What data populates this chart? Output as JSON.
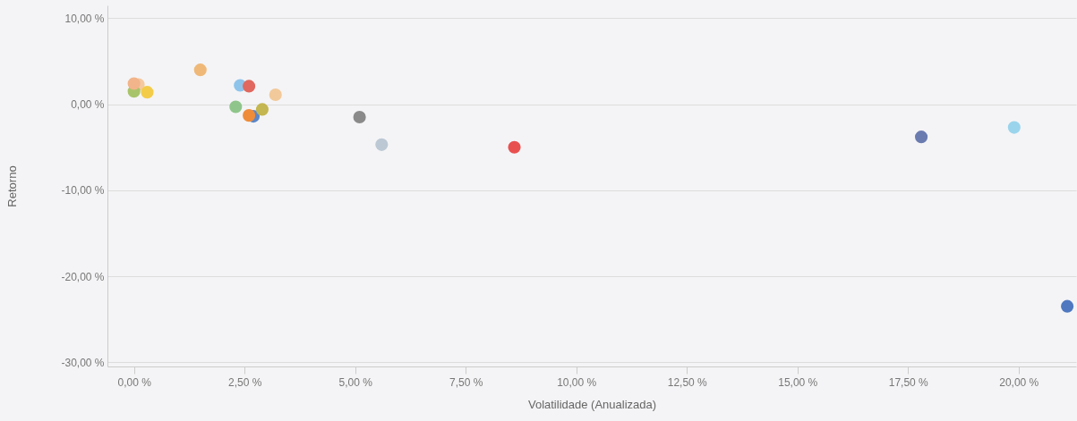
{
  "chart_data": {
    "type": "scatter",
    "xlabel": "Volatilidade (Anualizada)",
    "ylabel": "Retorno",
    "x": [
      0.1,
      0.0,
      0.3,
      0.0,
      1.5,
      2.4,
      2.6,
      3.2,
      2.3,
      2.7,
      2.6,
      2.9,
      5.1,
      5.6,
      8.6,
      17.8,
      19.9,
      21.1
    ],
    "values": [
      2.3,
      1.5,
      1.4,
      2.4,
      4.0,
      2.2,
      2.1,
      1.1,
      -0.3,
      -1.4,
      -1.3,
      -0.6,
      -1.5,
      -4.7,
      -5.0,
      -3.8,
      -2.7,
      -23.5
    ],
    "colors": [
      "#f5c9a0",
      "#a8c46a",
      "#f3cc4a",
      "#f2b48a",
      "#efb878",
      "#8ec4ea",
      "#e0685e",
      "#f2c99a",
      "#8fc58a",
      "#5b86c8",
      "#ef8c3a",
      "#c4b650",
      "#8a8a8a",
      "#bcc8d4",
      "#e85050",
      "#6a7bb0",
      "#9ad4ec",
      "#4f78c0"
    ],
    "xlim": [
      -0.6,
      21.3
    ],
    "xticks": [
      {
        "value": 0,
        "label": "0,00 %"
      },
      {
        "value": 2.5,
        "label": "2,50 %"
      },
      {
        "value": 5,
        "label": "5,00 %"
      },
      {
        "value": 7.5,
        "label": "7,50 %"
      },
      {
        "value": 10,
        "label": "10,00 %"
      },
      {
        "value": 12.5,
        "label": "12,50 %"
      },
      {
        "value": 15,
        "label": "15,00 %"
      },
      {
        "value": 17.5,
        "label": "17,50 %"
      },
      {
        "value": 20,
        "label": "20,00 %"
      }
    ],
    "ylim": [
      -30.5,
      11.5
    ],
    "yticks": [
      {
        "value": 10,
        "label": "10,00 %"
      },
      {
        "value": 0,
        "label": "0,00 %"
      },
      {
        "value": -10,
        "label": "-10,00 %"
      },
      {
        "value": -20,
        "label": "-20,00 %"
      },
      {
        "value": -30,
        "label": "-30,00 %"
      }
    ],
    "grid": "y",
    "marker": "circle"
  }
}
